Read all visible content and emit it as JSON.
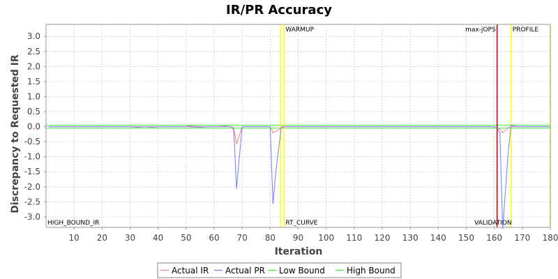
{
  "chart_data": {
    "type": "line",
    "title": "IR/PR Accuracy",
    "xlabel": "Iteration",
    "ylabel": "Discrepancy to Requested IR",
    "xlim": [
      0,
      180
    ],
    "ylim": [
      -3.35,
      3.4
    ],
    "x_ticks": [
      10,
      20,
      30,
      40,
      50,
      60,
      70,
      80,
      90,
      100,
      110,
      120,
      130,
      140,
      150,
      160,
      170,
      180
    ],
    "y_ticks": [
      3.0,
      2.5,
      2.0,
      1.5,
      1.0,
      0.5,
      0.0,
      -0.5,
      -1.0,
      -1.5,
      -2.0,
      -2.5,
      -3.0
    ],
    "grid": true,
    "legend_position": "bottom",
    "colors": {
      "actual_ir": "#ff7777",
      "actual_pr": "#7777ff",
      "low_bound": "#33ee33",
      "high_bound": "#33ee33",
      "marker_yellow": "#ffff00",
      "marker_red": "#aa0000",
      "plot_border": "#999999",
      "grid": "#cccccc"
    },
    "series": [
      {
        "name": "Actual IR",
        "color_key": "actual_ir",
        "x": [
          1,
          10,
          20,
          30,
          40,
          50,
          51,
          52,
          55,
          60,
          64,
          66,
          67,
          68,
          70,
          75,
          80,
          81,
          83,
          85,
          90,
          100,
          110,
          120,
          130,
          140,
          150,
          155,
          160,
          161,
          162,
          163,
          165,
          166,
          170,
          175,
          180
        ],
        "y": [
          0.0,
          0.0,
          0.0,
          0.0,
          0.0,
          0.0,
          0.03,
          0.02,
          0.0,
          0.0,
          0.02,
          0.0,
          -0.05,
          -0.58,
          0.0,
          0.0,
          0.0,
          -0.2,
          -0.1,
          0.0,
          0.0,
          0.0,
          0.0,
          0.0,
          0.0,
          0.0,
          0.0,
          0.0,
          0.0,
          -0.05,
          -0.08,
          -0.2,
          -0.04,
          0.0,
          0.0,
          0.0,
          0.0
        ]
      },
      {
        "name": "Actual PR",
        "color_key": "actual_pr",
        "x": [
          1,
          10,
          20,
          30,
          33,
          35,
          38,
          40,
          45,
          50,
          55,
          58,
          60,
          64,
          66,
          67,
          68,
          70,
          75,
          80,
          81,
          82,
          84,
          85,
          90,
          100,
          110,
          120,
          130,
          140,
          150,
          155,
          160,
          161,
          162,
          163,
          165,
          166,
          168,
          170,
          175,
          180
        ],
        "y": [
          0.0,
          0.0,
          0.0,
          0.0,
          -0.02,
          0.0,
          -0.02,
          0.0,
          0.0,
          0.0,
          -0.02,
          0.0,
          0.0,
          0.0,
          0.0,
          -0.1,
          -2.07,
          0.0,
          0.0,
          0.0,
          -2.57,
          -1.5,
          0.0,
          0.0,
          0.0,
          0.0,
          0.0,
          0.0,
          0.0,
          0.0,
          0.0,
          0.0,
          0.0,
          -0.05,
          -0.2,
          -3.4,
          -0.8,
          0.05,
          0.0,
          0.0,
          0.0,
          0.0
        ]
      },
      {
        "name": "Low Bound",
        "color_key": "low_bound",
        "x": [
          0,
          180
        ],
        "y": [
          -0.05,
          -0.05
        ]
      },
      {
        "name": "High Bound",
        "color_key": "high_bound",
        "x": [
          0,
          180
        ],
        "y": [
          0.05,
          0.05
        ]
      }
    ],
    "markers": [
      {
        "x": 83.7,
        "label": "",
        "color_key": "marker_yellow",
        "label_pos": "none"
      },
      {
        "x": 85,
        "label": "WARMUP",
        "color_key": "marker_yellow",
        "label_pos": "top-left"
      },
      {
        "x": 85,
        "label": "RT_CURVE",
        "color_key": "marker_yellow",
        "label_pos": "bottom-right"
      },
      {
        "x": 161,
        "label": "max-jOPS",
        "color_key": "marker_red",
        "label_pos": "top-right"
      },
      {
        "x": 161,
        "label": "VALIDATION",
        "color_key": "marker_red",
        "label_pos": "bottom-right"
      },
      {
        "x": 166,
        "label": "PROFILE",
        "color_key": "marker_yellow",
        "label_pos": "top-left"
      },
      {
        "x": 180,
        "label": "",
        "color_key": "marker_yellow",
        "label_pos": "none"
      }
    ],
    "bound_labels": [
      {
        "label": "HIGH_BOUND_IR",
        "position": "bottom-left"
      }
    ]
  }
}
